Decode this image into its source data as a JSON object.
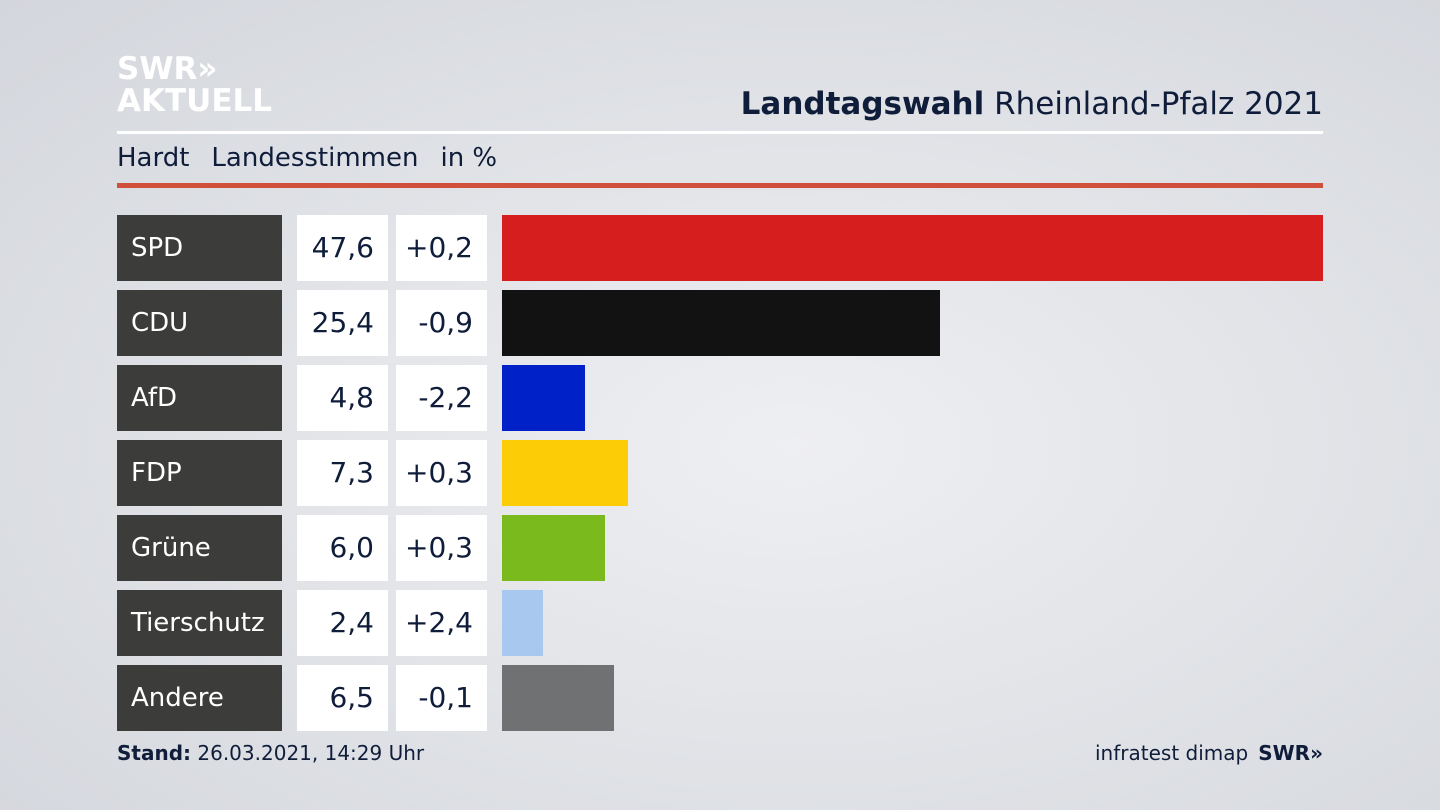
{
  "logo": {
    "line1": "SWR»",
    "line2": "AKTUELL"
  },
  "header": {
    "title_bold": "Landtagswahl",
    "title_rest": "Rheinland-Pfalz 2021"
  },
  "subtitle": {
    "place": "Hardt",
    "type": "Landesstimmen",
    "unit": "in %"
  },
  "footer": {
    "stand_label": "Stand:",
    "stand_value": "26.03.2021, 14:29 Uhr",
    "source": "infratest dimap",
    "brand": "SWR»"
  },
  "chart_data": {
    "type": "bar",
    "orientation": "horizontal",
    "title": "Landtagswahl Rheinland-Pfalz 2021",
    "subtitle": "Hardt Landesstimmen in %",
    "categories": [
      "SPD",
      "CDU",
      "AfD",
      "FDP",
      "Grüne",
      "Tierschutz",
      "Andere"
    ],
    "values": [
      47.6,
      25.4,
      4.8,
      7.3,
      6.0,
      2.4,
      6.5
    ],
    "value_labels": [
      "47,6",
      "25,4",
      "4,8",
      "7,3",
      "6,0",
      "2,4",
      "6,5"
    ],
    "diff_labels": [
      "+0,2",
      "-0,9",
      "-2,2",
      "+0,3",
      "+0,3",
      "+2,4",
      "-0,1"
    ],
    "colors": [
      "#d61e1e",
      "#121212",
      "#0020c8",
      "#fccc07",
      "#7aba1d",
      "#a9c8f0",
      "#707172"
    ],
    "xlim": [
      0,
      47.6
    ]
  }
}
